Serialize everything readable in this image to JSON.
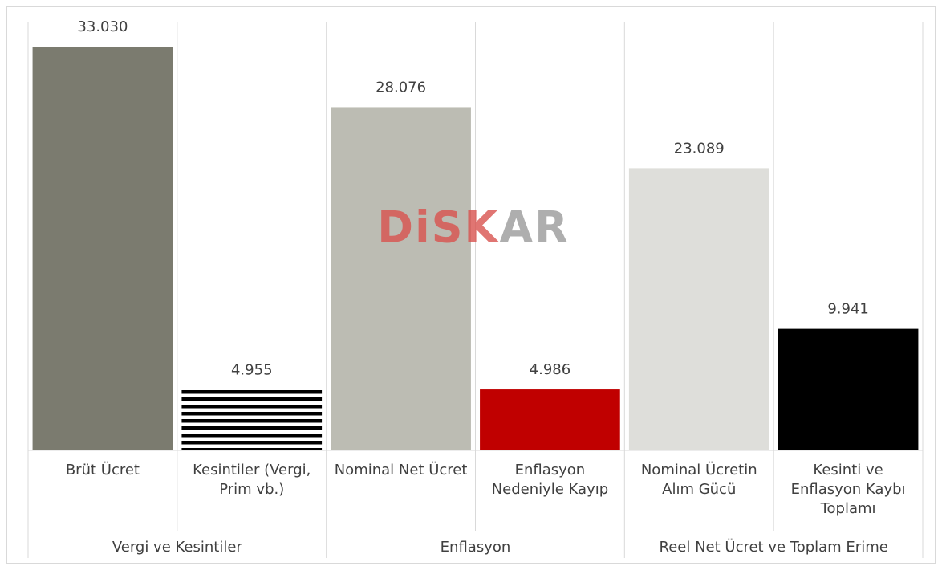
{
  "chart_data": {
    "type": "bar",
    "watermark": "DiSKAR",
    "categories": [
      "Brüt Ücret",
      "Kesintiler (Vergi, Prim vb.)",
      "Nominal Net Ücret",
      "Enflasyon Nedeniyle Kayıp",
      "Nominal Ücretin Alım Gücü",
      "Kesinti ve Enflasyon Kaybı Toplamı"
    ],
    "groups": [
      {
        "name": "Vergi ve Kesintiler",
        "span": 2
      },
      {
        "name": "Enflasyon",
        "span": 2
      },
      {
        "name": "Reel Net Ücret ve Toplam Erime",
        "span": 2
      }
    ],
    "values": [
      33030,
      4955,
      28076,
      4986,
      23089,
      9941
    ],
    "value_labels": [
      "33.030",
      "4.955",
      "28.076",
      "4.986",
      "23.089",
      "9.941"
    ],
    "colors": [
      "#7b7b6f",
      "#000000",
      "#bcbcb3",
      "#c00000",
      "#dededa",
      "#000000"
    ],
    "patterns": [
      "solid",
      "horizontal-stripes",
      "solid",
      "solid",
      "solid",
      "solid"
    ],
    "ylim": [
      0,
      35000
    ]
  }
}
